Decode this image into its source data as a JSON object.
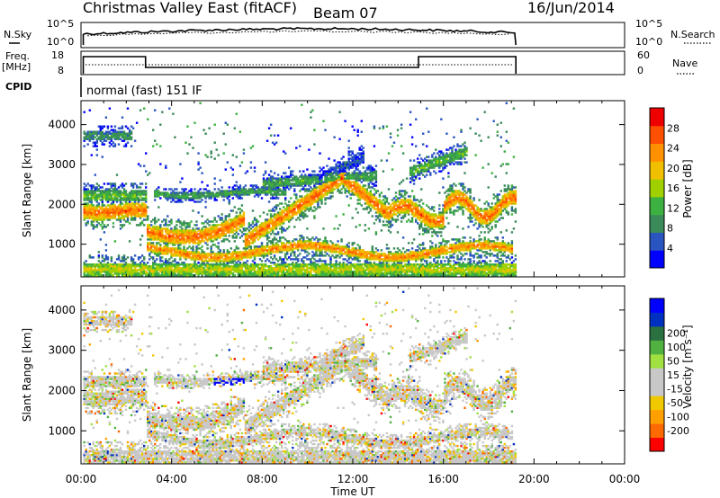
{
  "header": {
    "title": "Christmas Valley East (fitACF)",
    "beam": "Beam 07",
    "date": "16/Jun/2014"
  },
  "noise_panel": {
    "left_label": "N.Sky",
    "right_label": "N.Search",
    "left_ticks": [
      "10^5",
      "10^0"
    ],
    "right_ticks": [
      "10^5",
      "10^0"
    ]
  },
  "freq_panel": {
    "left_label_line1": "Freq.",
    "left_label_line2": "[MHz]",
    "right_label": "Nave",
    "left_ticks": [
      "18",
      "8"
    ],
    "right_ticks": [
      "60",
      "0"
    ]
  },
  "cpid": {
    "label": "CPID",
    "value": "normal (fast) 151 IF"
  },
  "colors": {
    "power": [
      "#0000ff",
      "#2a55c0",
      "#3a8a5a",
      "#3cb040",
      "#a0d000",
      "#f0c000",
      "#ff9000",
      "#ff5000",
      "#ee0000"
    ],
    "velocity": [
      "#ff0000",
      "#ff6a00",
      "#ffa000",
      "#f0c800",
      "#c8c8c8",
      "#c8c8c8",
      "#a0e040",
      "#50b040",
      "#2a7040",
      "#0030c0",
      "#0000ff"
    ]
  },
  "chart_data": [
    {
      "type": "heatmap",
      "quantity": "Power",
      "ylabel": "Slant Range [km]",
      "yticks": [
        1000,
        2000,
        3000,
        4000
      ],
      "ylim": [
        180,
        4600
      ],
      "xlim_hours": [
        0,
        24
      ],
      "colorbar": {
        "label": "Power [dB]",
        "ticks": [
          "4",
          "8",
          "12",
          "16",
          "20",
          "24",
          "28"
        ],
        "range": [
          0,
          32
        ]
      }
    },
    {
      "type": "heatmap",
      "quantity": "Velocity",
      "ylabel": "Slant Range [km]",
      "yticks": [
        1000,
        2000,
        3000,
        4000
      ],
      "ylim": [
        180,
        4600
      ],
      "xlim_hours": [
        0,
        24
      ],
      "colorbar": {
        "label": "Velocity [m s⁻¹]",
        "ticks": [
          "-200",
          "-100",
          "-50",
          "-15",
          "15",
          "50",
          "100",
          "200"
        ]
      }
    }
  ],
  "xaxis": {
    "label": "Time UT",
    "ticks": [
      "00:00",
      "04:00",
      "08:00",
      "12:00",
      "16:00",
      "20:00",
      "00:00"
    ]
  }
}
